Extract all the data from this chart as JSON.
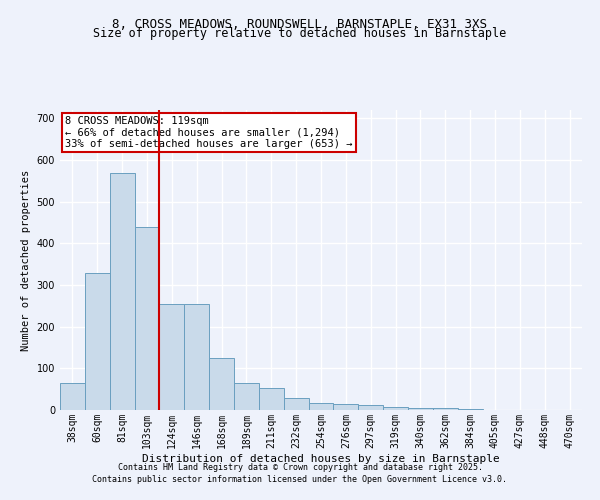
{
  "title1": "8, CROSS MEADOWS, ROUNDSWELL, BARNSTAPLE, EX31 3XS",
  "title2": "Size of property relative to detached houses in Barnstaple",
  "xlabel": "Distribution of detached houses by size in Barnstaple",
  "ylabel": "Number of detached properties",
  "categories": [
    "38sqm",
    "60sqm",
    "81sqm",
    "103sqm",
    "124sqm",
    "146sqm",
    "168sqm",
    "189sqm",
    "211sqm",
    "232sqm",
    "254sqm",
    "276sqm",
    "297sqm",
    "319sqm",
    "340sqm",
    "362sqm",
    "384sqm",
    "405sqm",
    "427sqm",
    "448sqm",
    "470sqm"
  ],
  "values": [
    65,
    330,
    570,
    440,
    255,
    255,
    125,
    65,
    52,
    30,
    17,
    15,
    12,
    8,
    5,
    5,
    3,
    1,
    0,
    0,
    0
  ],
  "bar_color": "#c9daea",
  "bar_edge_color": "#6a9fc0",
  "background_color": "#eef2fb",
  "grid_color": "#ffffff",
  "annotation_text": "8 CROSS MEADOWS: 119sqm\n← 66% of detached houses are smaller (1,294)\n33% of semi-detached houses are larger (653) →",
  "annotation_box_color": "#ffffff",
  "annotation_box_edge": "#cc0000",
  "red_line_color": "#cc0000",
  "footer1": "Contains HM Land Registry data © Crown copyright and database right 2025.",
  "footer2": "Contains public sector information licensed under the Open Government Licence v3.0.",
  "ylim": [
    0,
    720
  ],
  "yticks": [
    0,
    100,
    200,
    300,
    400,
    500,
    600,
    700
  ],
  "red_line_xindex": 3.5,
  "title1_fontsize": 9,
  "title2_fontsize": 8.5,
  "ylabel_fontsize": 7.5,
  "xlabel_fontsize": 8,
  "tick_fontsize": 7,
  "footer_fontsize": 6
}
